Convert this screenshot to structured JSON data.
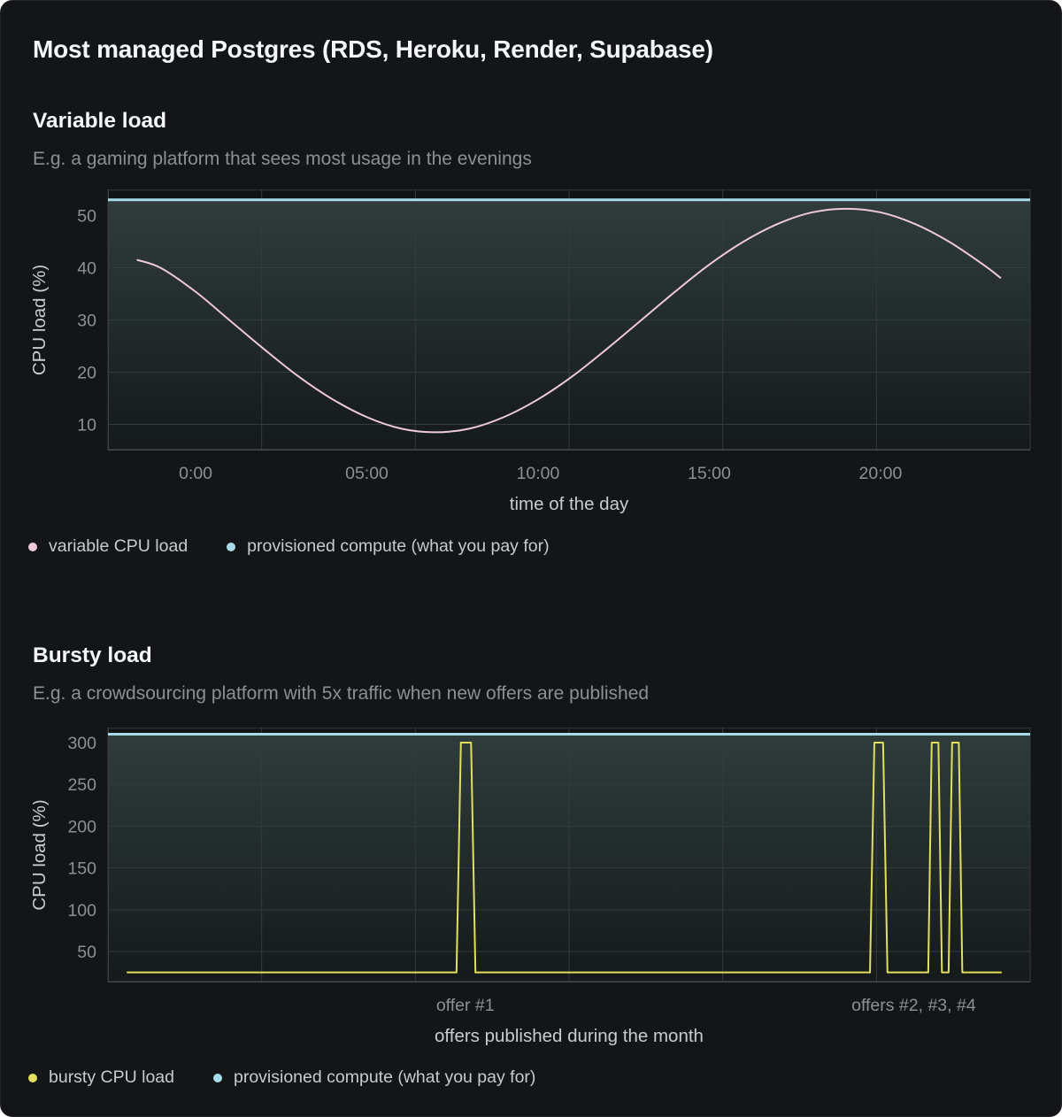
{
  "card": {
    "title": "Most managed Postgres (RDS, Heroku, Render, Supabase)"
  },
  "colors": {
    "heading": "#f4f6f8",
    "subtitle": "#8a9096",
    "tick_label": "#8b9196",
    "axis_title": "#c7ccd1",
    "accent_pink": "#efc8da",
    "accent_cyan": "#a6dbe7",
    "accent_yellow": "#e2df5e",
    "plot_background": "#101314",
    "grid_line": "#343b3b"
  },
  "sections": [
    {
      "heading": "Variable load",
      "subtitle": "E.g. a gaming platform that sees most usage in the evenings",
      "legend": [
        {
          "label": "variable CPU load",
          "color": "#efc8da"
        },
        {
          "label": "provisioned compute (what you pay for)",
          "color": "#a6dbe7"
        }
      ],
      "chart_data": {
        "type": "line",
        "title": "",
        "xlabel": "time of the day",
        "ylabel": "CPU load (%)",
        "xlim": [
          -2.56,
          24.37
        ],
        "ylim": [
          5,
          55
        ],
        "yticks": [
          10,
          20,
          30,
          40,
          50
        ],
        "xticks": [
          {
            "value": 0,
            "label": "0:00"
          },
          {
            "value": 5,
            "label": "05:00"
          },
          {
            "value": 10,
            "label": "10:00"
          },
          {
            "value": 15,
            "label": "15:00"
          },
          {
            "value": 20,
            "label": "20:00"
          }
        ],
        "grid": true,
        "legend_position": "bottom-left",
        "series": [
          {
            "name": "variable CPU load",
            "color": "#efc8da",
            "smooth": true,
            "width": 2,
            "points": [
              [
                -1.7,
                41.5
              ],
              [
                -1,
                39.9
              ],
              [
                0,
                35.4
              ],
              [
                1,
                29.9
              ],
              [
                2,
                24.4
              ],
              [
                3,
                19.2
              ],
              [
                4,
                14.8
              ],
              [
                5,
                11.4
              ],
              [
                6,
                9.2
              ],
              [
                7,
                8.5
              ],
              [
                8,
                9.2
              ],
              [
                9,
                11.4
              ],
              [
                10,
                14.8
              ],
              [
                11,
                19.2
              ],
              [
                12,
                24.4
              ],
              [
                13,
                29.9
              ],
              [
                14,
                35.4
              ],
              [
                15,
                40.6
              ],
              [
                16,
                45.0
              ],
              [
                17,
                48.4
              ],
              [
                18,
                50.6
              ],
              [
                19,
                51.3
              ],
              [
                20,
                50.6
              ],
              [
                21,
                48.4
              ],
              [
                22,
                45.0
              ],
              [
                23,
                40.6
              ],
              [
                23.5,
                38.1
              ]
            ]
          },
          {
            "name": "provisioned compute (what you pay for)",
            "color": "#a6dbe7",
            "type": "constant",
            "value": 53,
            "width": 3
          }
        ]
      }
    },
    {
      "heading": "Bursty load",
      "subtitle": "E.g. a crowdsourcing platform with 5x traffic when new offers are published",
      "legend": [
        {
          "label": "bursty CPU load",
          "color": "#e2df5e"
        },
        {
          "label": "provisioned compute (what you pay for)",
          "color": "#a6dbe7"
        }
      ],
      "chart_data": {
        "type": "line",
        "title": "",
        "xlabel": "offers published during the month",
        "ylabel": "CPU load (%)",
        "xlim": [
          -0.67,
          31.0
        ],
        "ylim": [
          13,
          318
        ],
        "yticks": [
          50,
          100,
          150,
          200,
          250,
          300
        ],
        "xticks": [
          {
            "value": 11.6,
            "label": "offer #1"
          },
          {
            "value": 27.0,
            "label": "offers #2, #3, #4"
          }
        ],
        "grid": true,
        "legend_position": "bottom-left",
        "series": [
          {
            "name": "bursty CPU load",
            "color": "#e2df5e",
            "smooth": false,
            "width": 2,
            "points": [
              [
                0,
                25
              ],
              [
                11.3,
                25
              ],
              [
                11.45,
                300
              ],
              [
                11.8,
                300
              ],
              [
                11.95,
                25
              ],
              [
                25.5,
                25
              ],
              [
                25.65,
                300
              ],
              [
                25.95,
                300
              ],
              [
                26.1,
                25
              ],
              [
                27.5,
                25
              ],
              [
                27.62,
                300
              ],
              [
                27.85,
                300
              ],
              [
                27.97,
                25
              ],
              [
                28.2,
                25
              ],
              [
                28.32,
                300
              ],
              [
                28.55,
                300
              ],
              [
                28.67,
                25
              ],
              [
                30,
                25
              ]
            ]
          },
          {
            "name": "provisioned compute (what you pay for)",
            "color": "#a6dbe7",
            "type": "constant",
            "value": 310,
            "width": 3
          }
        ]
      }
    }
  ]
}
